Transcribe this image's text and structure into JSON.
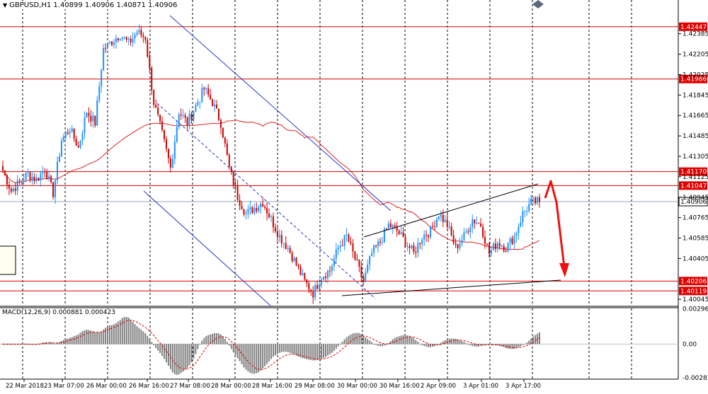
{
  "header": {
    "symbol_line": "GBPUSD,H1  1.40899 1.40906 1.40871 1.40906",
    "macd_label": "MACD(12,26,9) 0.000881 0.000423"
  },
  "chart_data": {
    "type": "candlestick",
    "symbol": "GBPUSD",
    "timeframe": "H1",
    "ohlc_last": {
      "open": 1.40899,
      "high": 1.40906,
      "low": 1.40871,
      "close": 1.40906
    },
    "price_axis": {
      "ticks": [
        "1.42385",
        "1.42205",
        "1.42025",
        "1.41845",
        "1.41665",
        "1.41485",
        "1.41305",
        "1.41125",
        "1.40945",
        "1.40765",
        "1.40585",
        "1.40405",
        "1.40045"
      ],
      "range": [
        1.3999,
        1.4262
      ]
    },
    "time_axis": {
      "ticks": [
        "22 Mar 2018",
        "23 Mar 07:00",
        "26 Mar 00:00",
        "26 Mar 16:00",
        "27 Mar 08:00",
        "28 Mar 00:00",
        "28 Mar 16:00",
        "29 Mar 08:00",
        "30 Mar 00:00",
        "30 Mar 16:00",
        "2 Apr 09:00",
        "3 Apr 01:00",
        "3 Apr 17:00"
      ]
    },
    "horizontal_levels": [
      {
        "label": "1.42447",
        "value": 1.42447
      },
      {
        "label": "1.41986",
        "value": 1.41986
      },
      {
        "label": "1.41170",
        "value": 1.4117
      },
      {
        "label": "1.41047",
        "value": 1.41047
      },
      {
        "label": "1.40206",
        "value": 1.40206
      },
      {
        "label": "1.40119",
        "value": 1.40119
      }
    ],
    "current_price": {
      "label": "1.40906",
      "value": 1.40906
    },
    "colors": {
      "bull": "#1e90ff",
      "bear": "#cc0000",
      "level": "#dd0000",
      "moving_average": "#dd2222",
      "channel": "#2233cc",
      "wedge": "#000000",
      "forecast_arrow": "#ee1111",
      "histogram": "#808080",
      "signal": "#dd0000"
    },
    "macd": {
      "params": "12,26,9",
      "main": 0.000881,
      "signal": 0.000423,
      "ticks": [
        "0.002963",
        "0.00",
        "-0.002833"
      ],
      "range": [
        -0.00295,
        0.003
      ]
    },
    "anchor_series": {
      "idx": [
        0,
        4,
        8,
        12,
        16,
        20,
        24,
        28,
        32,
        36,
        40,
        44,
        48,
        52,
        56,
        60,
        64,
        68,
        72,
        76,
        80,
        84,
        88,
        92,
        96,
        100,
        104,
        108,
        112,
        116,
        120,
        124,
        128,
        132,
        136,
        140,
        144,
        148,
        152,
        156,
        160,
        164,
        168,
        172,
        176,
        180,
        184,
        188,
        192,
        196,
        200,
        204,
        208,
        212,
        216,
        220,
        224,
        228,
        232,
        236,
        240,
        244,
        248,
        252,
        256
      ],
      "close": [
        1.4118,
        1.41,
        1.4108,
        1.4115,
        1.411,
        1.412,
        1.4098,
        1.4145,
        1.4155,
        1.4138,
        1.417,
        1.416,
        1.4225,
        1.4232,
        1.4238,
        1.423,
        1.424,
        1.4235,
        1.4178,
        1.415,
        1.412,
        1.417,
        1.416,
        1.4175,
        1.419,
        1.4178,
        1.416,
        1.412,
        1.4095,
        1.408,
        1.4085,
        1.409,
        1.4075,
        1.406,
        1.405,
        1.4035,
        1.402,
        1.401,
        1.4025,
        1.403,
        1.405,
        1.406,
        1.404,
        1.402,
        1.4045,
        1.4055,
        1.407,
        1.4065,
        1.4055,
        1.4045,
        1.406,
        1.4065,
        1.408,
        1.407,
        1.405,
        1.406,
        1.4075,
        1.407,
        1.4045,
        1.4055,
        1.405,
        1.406,
        1.408,
        1.409,
        1.40906
      ]
    },
    "grid": true
  }
}
